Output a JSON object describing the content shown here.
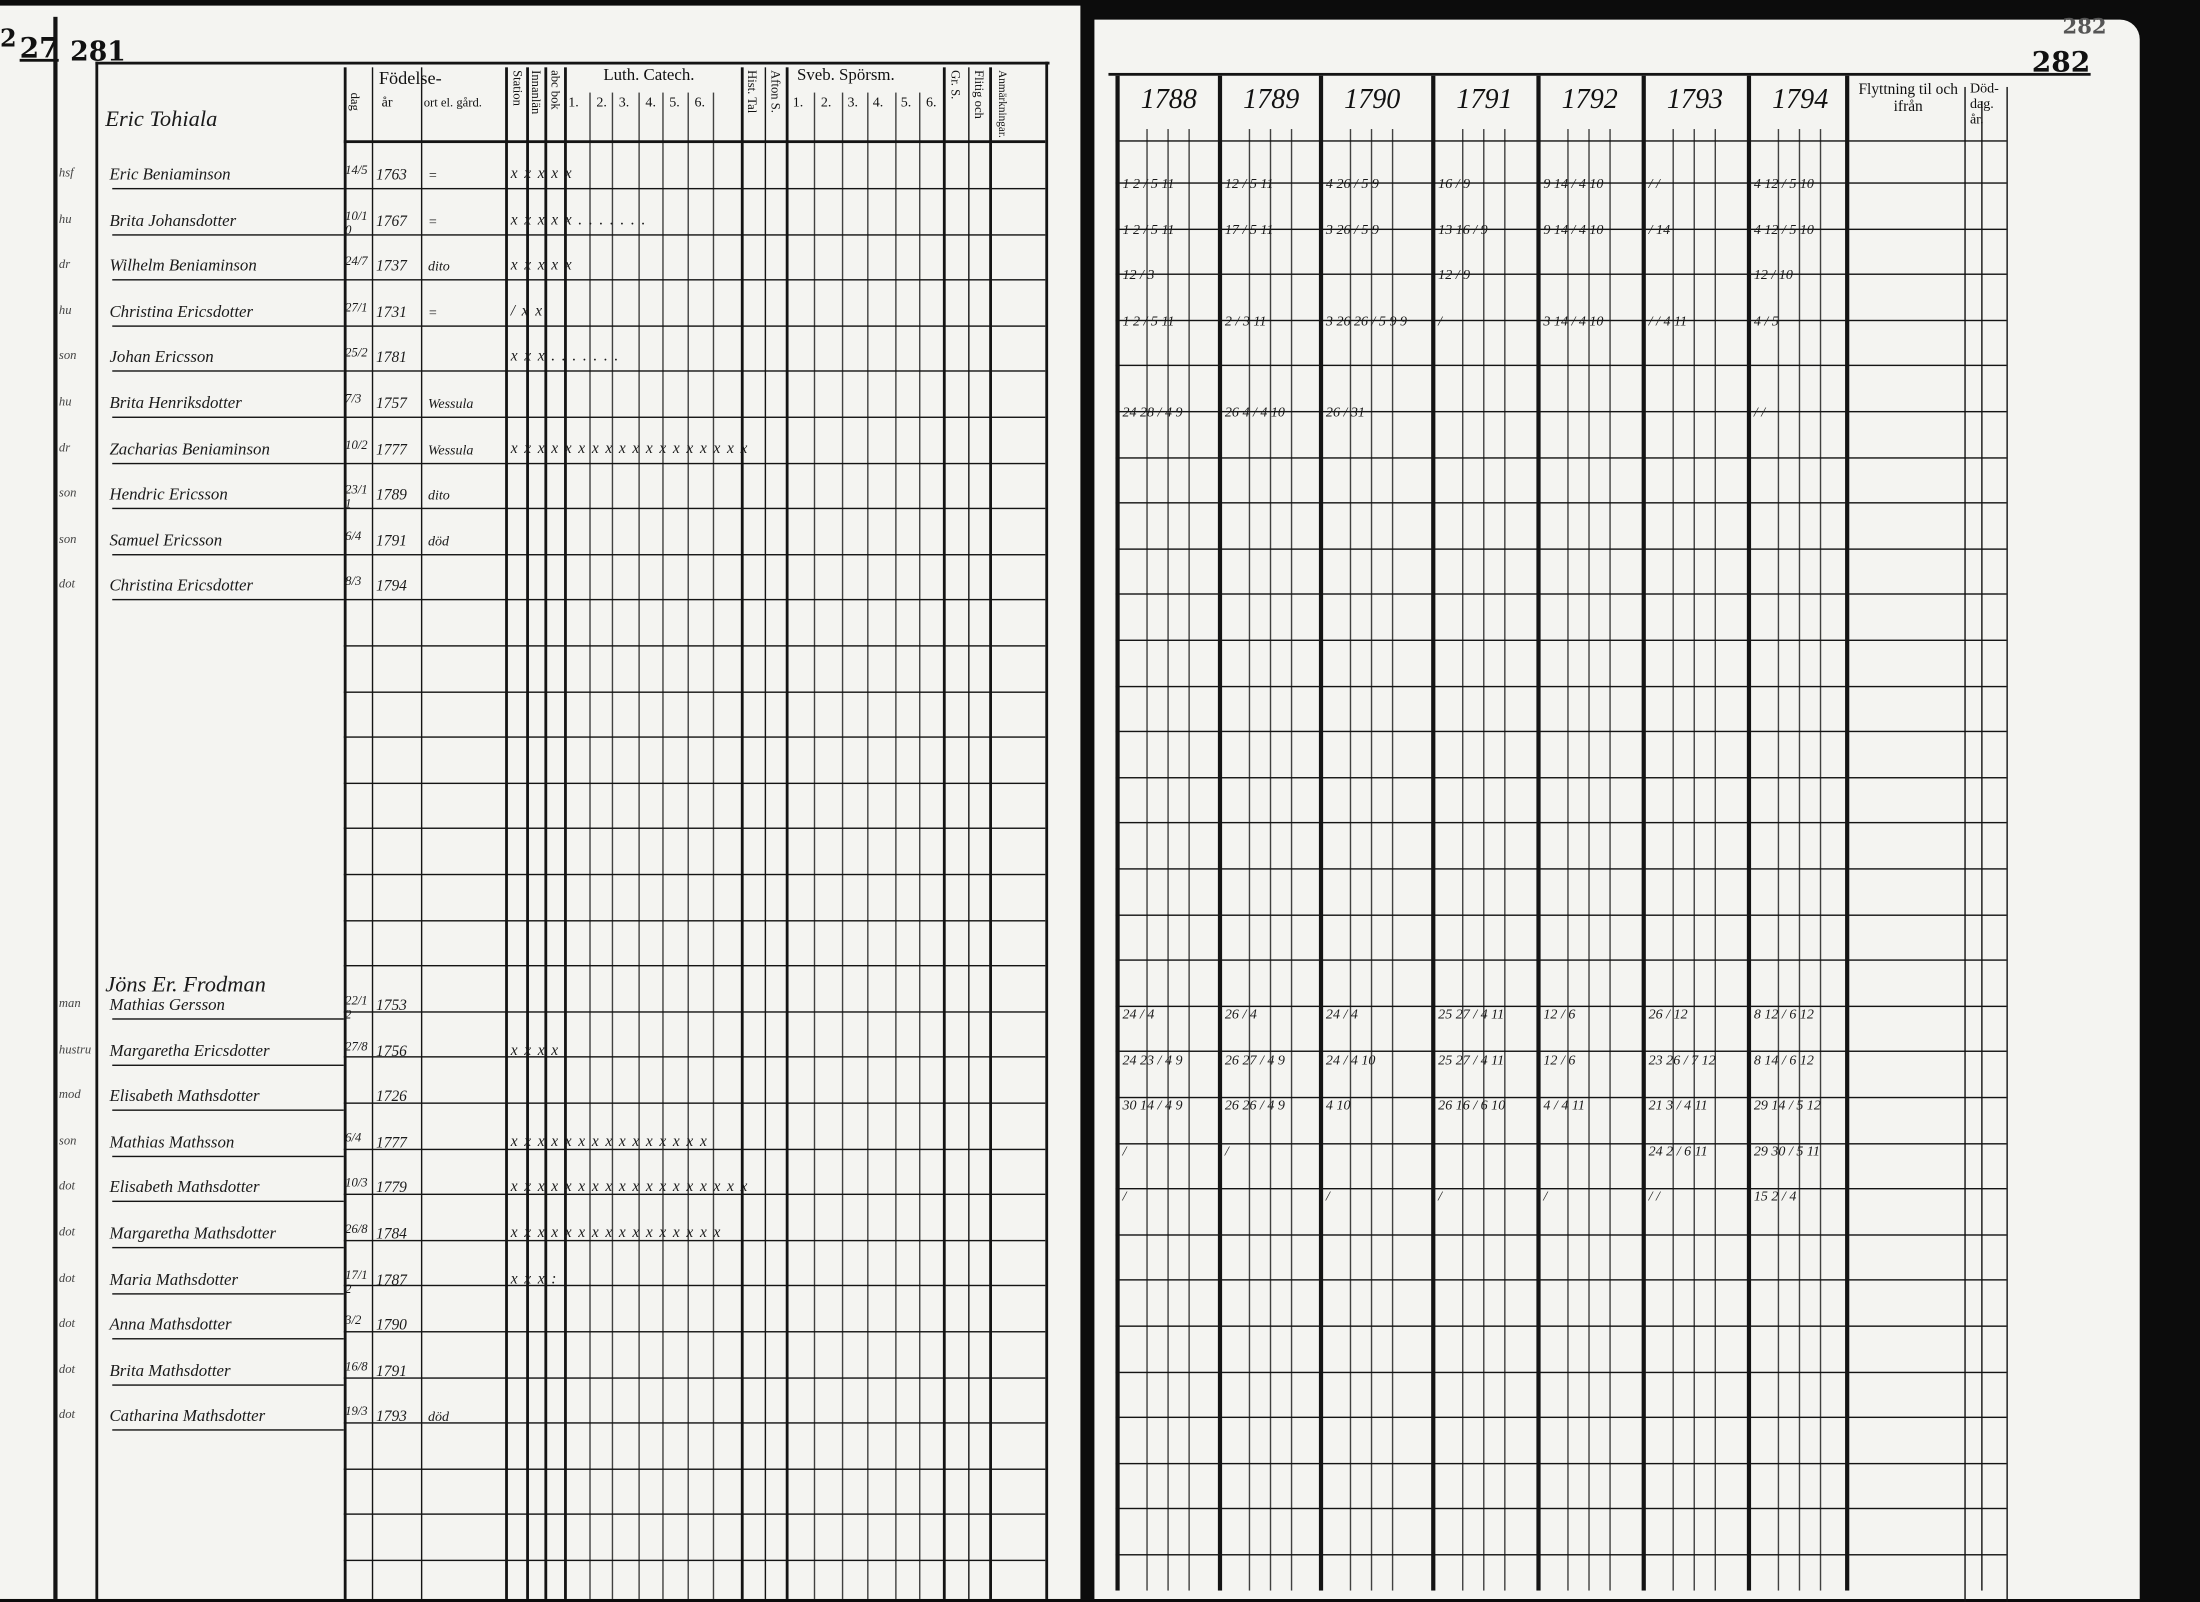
{
  "left_page": {
    "page_marks": [
      "2",
      "27",
      "281"
    ],
    "headers": {
      "birth_group": "Födelse-",
      "day_month": "dag",
      "year": "år",
      "place": "ort el. gård.",
      "station": "Station",
      "inn": "Innanlän",
      "abc": "abc bok",
      "luth_catech": "Luth. Catech.",
      "luth_parts": [
        "1.",
        "2.",
        "3.",
        "4.",
        "5.",
        "6."
      ],
      "historia": "Hist. Tal",
      "afton": "Afton S.",
      "sveb": "Sveb. Spörsm.",
      "sveb_parts": [
        "1.",
        "2.",
        "3.",
        "4.",
        "5.",
        "6."
      ],
      "gr_s": "Gr. S.",
      "flitig": "Flitig och",
      "anm": "Anmärkningar."
    },
    "households": [
      {
        "title": "Eric Tohiala",
        "members": [
          {
            "rel": "hsf",
            "name": "Eric Beniaminson",
            "dm": "14/5",
            "year": "1763",
            "place": "=",
            "marks": "x x x x x"
          },
          {
            "rel": "hu",
            "name": "Brita Johansdotter",
            "dm": "10/10",
            "year": "1767",
            "place": "=",
            "marks": "x x x x x . . . . . . ."
          },
          {
            "rel": "dr",
            "name": "Wilhelm Beniaminson",
            "dm": "24/7",
            "year": "1737",
            "place": "dito",
            "marks": "x x x x x"
          },
          {
            "rel": "hu",
            "name": "Christina Ericsdotter",
            "dm": "27/1",
            "year": "1731",
            "place": "=",
            "marks": "/   x x"
          },
          {
            "rel": "son",
            "name": "Johan Ericsson",
            "dm": "25/2",
            "year": "1781",
            "place": "",
            "marks": "x x x . . . . . . ."
          },
          {
            "rel": "hu",
            "name": "Brita Henriksdotter",
            "dm": "7/3",
            "year": "1757",
            "place": "Wessula",
            "marks": ""
          },
          {
            "rel": "dr",
            "name": "Zacharias Beniaminson",
            "dm": "10/2",
            "year": "1777",
            "place": "Wessula",
            "marks": "x x x x x x x x x x x x x x x x x x"
          },
          {
            "rel": "son",
            "name": "Hendric Ericsson",
            "dm": "23/11",
            "year": "1789",
            "place": "dito",
            "marks": ""
          },
          {
            "rel": "son",
            "name": "Samuel Ericsson",
            "dm": "6/4",
            "year": "1791",
            "place": "död",
            "marks": ""
          },
          {
            "rel": "dot",
            "name": "Christina Ericsdotter",
            "dm": "8/3",
            "year": "1794",
            "place": "",
            "marks": ""
          }
        ]
      },
      {
        "title": "Jöns Er. Frodman",
        "members": [
          {
            "rel": "man",
            "name": "Mathias Gersson",
            "dm": "22/12",
            "year": "1753",
            "place": "",
            "marks": ""
          },
          {
            "rel": "hustru",
            "name": "Margaretha Ericsdotter",
            "dm": "27/8",
            "year": "1756",
            "place": "",
            "marks": "x x x x"
          },
          {
            "rel": "mod",
            "name": "Elisabeth Mathsdotter",
            "dm": "",
            "year": "1726",
            "place": "",
            "marks": ""
          },
          {
            "rel": "son",
            "name": "Mathias Mathsson",
            "dm": "6/4",
            "year": "1777",
            "place": "",
            "marks": "x x x x x x x x x x x x x x x"
          },
          {
            "rel": "dot",
            "name": "Elisabeth Mathsdotter",
            "dm": "10/3",
            "year": "1779",
            "place": "",
            "marks": "x x x x x x x x x x x x x x x x x x"
          },
          {
            "rel": "dot",
            "name": "Margaretha Mathsdotter",
            "dm": "26/8",
            "year": "1784",
            "place": "",
            "marks": "x x x x x x x x x x x x x x x x"
          },
          {
            "rel": "dot",
            "name": "Maria Mathsdotter",
            "dm": "17/12",
            "year": "1787",
            "place": "",
            "marks": "x x x :"
          },
          {
            "rel": "dot",
            "name": "Anna Mathsdotter",
            "dm": "3/2",
            "year": "1790",
            "place": "",
            "marks": ""
          },
          {
            "rel": "dot",
            "name": "Brita Mathsdotter",
            "dm": "16/8",
            "year": "1791",
            "place": "",
            "marks": ""
          },
          {
            "rel": "dot",
            "name": "Catharina Mathsdotter",
            "dm": "19/3",
            "year": "1793",
            "place": "död",
            "marks": ""
          }
        ]
      }
    ]
  },
  "right_page": {
    "page_number": "282",
    "faint_number": "282",
    "years": [
      "1788",
      "1789",
      "1790",
      "1791",
      "1792",
      "1793",
      "1794"
    ],
    "moving_header": "Flyttning til och ifrån",
    "death_header": "Död- dag. år.",
    "entries": [
      {
        "row": 0,
        "cells": [
          "1 2 /  5 11",
          "12 /  5 11",
          "4 26 /  5 9",
          "16 /  9",
          "9 14 /  4 10",
          "/ /",
          "4 12 /  5 10"
        ]
      },
      {
        "row": 1,
        "cells": [
          "1 2 /  5 11",
          "17 /  5 11",
          "3 26 /  5 9",
          "13 16 /  9",
          "9 14 /  4 10",
          "/ 14",
          "4 12 /  5 10"
        ]
      },
      {
        "row": 2,
        "cells": [
          "12 /  3",
          "",
          "",
          "12 /  9",
          "",
          "",
          "12 /  10"
        ]
      },
      {
        "row": 3,
        "cells": [
          "1 2 /  5 11",
          "2 /  3 11",
          "3 26 26 /  5 9 9",
          "/",
          "3 14 /  4 10",
          "/ /  4 11",
          "4 /  5"
        ]
      },
      {
        "row": 5,
        "cells": [
          "24 28 /  4 9",
          "26 4 /  4 10",
          "26 /  31",
          "",
          "",
          "",
          "/ /"
        ]
      },
      {
        "row": 18,
        "cells": [
          "24 /  4",
          "26 /  4",
          "24 /  4",
          "25 27 /  4 11",
          "12 /  6",
          "26 /  12",
          "8 12 /  6 12"
        ]
      },
      {
        "row": 19,
        "cells": [
          "24 23 /  4 9",
          "26 27 /  4 9",
          "24 /  4 10",
          "25 27 /  4 11",
          "12 /  6",
          "23 26 /  7 12",
          "8 14 /  6 12"
        ]
      },
      {
        "row": 20,
        "cells": [
          "30 14 /  4 9",
          "26 26 /  4 9",
          "4 10",
          "26 16 /  6 10",
          "4 /  4 11",
          "21 3 /  4 11",
          "29 14 /  5 12"
        ]
      },
      {
        "row": 21,
        "cells": [
          "/",
          "/",
          "",
          "",
          "",
          "24 2 /  6 11",
          "29 30 /  5 11"
        ]
      },
      {
        "row": 22,
        "cells": [
          "/",
          "",
          "/",
          "/",
          "/",
          "/ /",
          "15 2 /  4"
        ]
      }
    ]
  }
}
